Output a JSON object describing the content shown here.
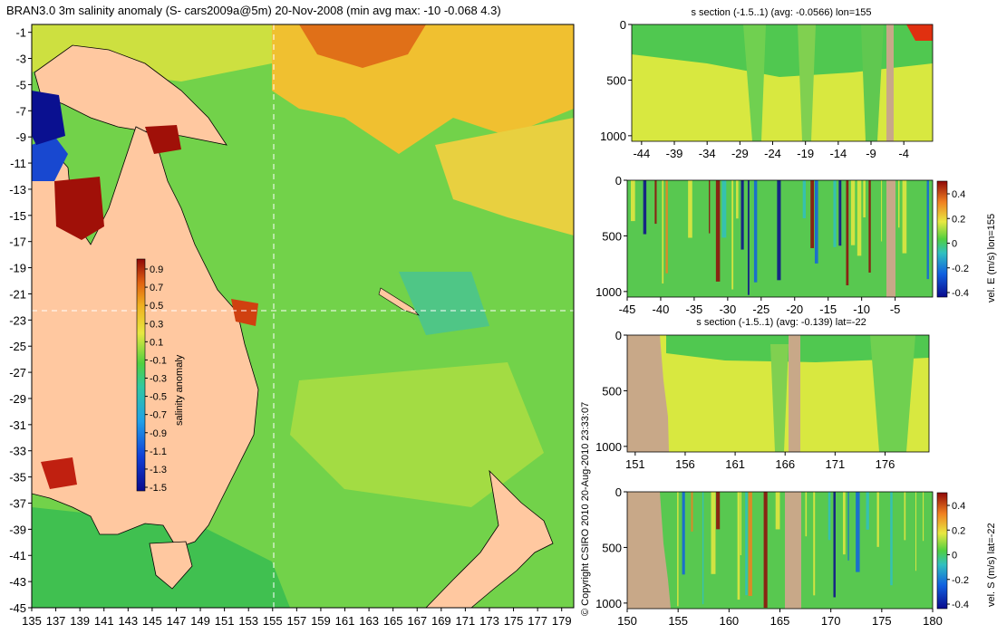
{
  "map": {
    "title": "BRAN3.0 3m salinity anomaly (S- cars2009a@5m) 20-Nov-2008 (min avg max: -10 -0.068 4.3)",
    "lat_ticks": [
      "-1",
      "-3",
      "-5",
      "-7",
      "-9",
      "-11",
      "-13",
      "-15",
      "-17",
      "-19",
      "-21",
      "-23",
      "-25",
      "-27",
      "-29",
      "-31",
      "-33",
      "-35",
      "-37",
      "-39",
      "-41",
      "-43",
      "-45"
    ],
    "lon_ticks": [
      "135",
      "137",
      "139",
      "141",
      "143",
      "145",
      "147",
      "149",
      "151",
      "153",
      "155",
      "157",
      "159",
      "161",
      "163",
      "165",
      "167",
      "169",
      "171",
      "173",
      "175",
      "177",
      "179"
    ],
    "colorbar": {
      "label": "salinity anomaly",
      "ticks": [
        "0.9",
        "0.7",
        "0.5",
        "0.3",
        "0.1",
        "-0.1",
        "-0.3",
        "-0.5",
        "-0.7",
        "-0.9",
        "-1.1",
        "-1.3",
        "-1.5"
      ]
    },
    "crosshair": {
      "lon": 155,
      "lat": -22
    },
    "copyright": "© Copyright CSIRO 2010   20-Aug-2010 23:33:07"
  },
  "panels": [
    {
      "title": "s section (-1.5..1) (avg: -0.0566) lon=155",
      "y_ticks": [
        "0",
        "500",
        "1000"
      ],
      "x_ticks": [
        "-44",
        "-39",
        "-34",
        "-29",
        "-24",
        "-19",
        "-14",
        "-9",
        "-4"
      ],
      "colorbar": null
    },
    {
      "title": "",
      "y_ticks": [
        "0",
        "500",
        "1000"
      ],
      "x_ticks": [
        "-45",
        "-40",
        "-35",
        "-30",
        "-25",
        "-20",
        "-15",
        "-10",
        "-5"
      ],
      "colorbar": {
        "label": "vel. E (m/s) lon=155",
        "ticks": [
          "0.4",
          "0.2",
          "0",
          "-0.2",
          "-0.4"
        ]
      }
    },
    {
      "title": "s section (-1.5..1) (avg: -0.139) lat=-22",
      "y_ticks": [
        "0",
        "500",
        "1000"
      ],
      "x_ticks": [
        "151",
        "156",
        "161",
        "166",
        "171",
        "176"
      ],
      "colorbar": null
    },
    {
      "title": "",
      "y_ticks": [
        "0",
        "500",
        "1000"
      ],
      "x_ticks": [
        "150",
        "155",
        "160",
        "165",
        "170",
        "175",
        "180"
      ],
      "colorbar": {
        "label": "vel. S (m/s) lat=-22",
        "ticks": [
          "0.4",
          "0.2",
          "0",
          "-0.2",
          "-0.4"
        ]
      }
    }
  ],
  "chart_data": [
    {
      "type": "heatmap",
      "title": "BRAN3.0 3m salinity anomaly (S- cars2009a@5m) 20-Nov-2008 (min avg max: -10 -0.068 4.3)",
      "xlabel": "",
      "ylabel": "",
      "xlim": [
        135,
        180
      ],
      "ylim": [
        -45,
        0
      ],
      "colorbar_label": "salinity anomaly",
      "color_range": [
        -1.5,
        1
      ],
      "stats": {
        "min": -10,
        "avg": -0.068,
        "max": 4.3
      },
      "crosshair": {
        "lon": 155,
        "lat": -22
      }
    },
    {
      "type": "heatmap",
      "title": "s section (-1.5..1) (avg: -0.0566) lon=155",
      "x_range": [
        -45,
        0
      ],
      "y_range": [
        0,
        1000
      ],
      "color_range": [
        -1.5,
        1
      ],
      "avg": -0.0566
    },
    {
      "type": "heatmap",
      "title": "",
      "colorbar_label": "vel. E (m/s) lon=155",
      "x_range": [
        -45,
        0
      ],
      "y_range": [
        0,
        1000
      ],
      "color_range": [
        -0.4,
        0.4
      ]
    },
    {
      "type": "heatmap",
      "title": "s section (-1.5..1) (avg: -0.139) lat=-22",
      "x_range": [
        150,
        180
      ],
      "y_range": [
        0,
        1000
      ],
      "color_range": [
        -1.5,
        1
      ],
      "avg": -0.139
    },
    {
      "type": "heatmap",
      "title": "",
      "colorbar_label": "vel. S (m/s) lat=-22",
      "x_range": [
        150,
        180
      ],
      "y_range": [
        0,
        1000
      ],
      "color_range": [
        -0.4,
        0.4
      ]
    }
  ]
}
